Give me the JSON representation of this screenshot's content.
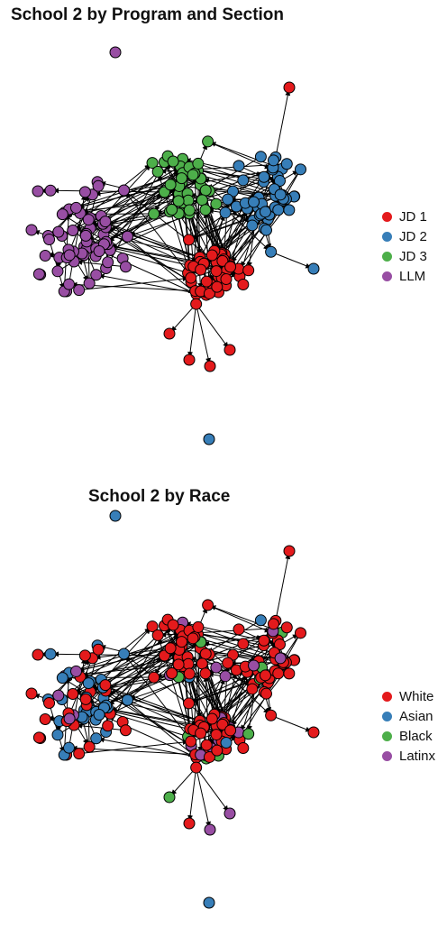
{
  "colors": {
    "red": "#E41A1C",
    "blue": "#377EB8",
    "green": "#4DAF4A",
    "purple": "#984EA3"
  },
  "top": {
    "title": "School 2 by Program and Section",
    "legend": [
      {
        "label": "JD 1",
        "color": "#E41A1C"
      },
      {
        "label": "JD 2",
        "color": "#377EB8"
      },
      {
        "label": "JD 3",
        "color": "#4DAF4A"
      },
      {
        "label": "LLM",
        "color": "#984EA3"
      }
    ]
  },
  "bottom": {
    "title": "School 2 by Race",
    "legend": [
      {
        "label": "White",
        "color": "#E41A1C"
      },
      {
        "label": "Asian",
        "color": "#377EB8"
      },
      {
        "label": "Black",
        "color": "#4DAF4A"
      },
      {
        "label": "Latinx",
        "color": "#984EA3"
      }
    ]
  }
}
